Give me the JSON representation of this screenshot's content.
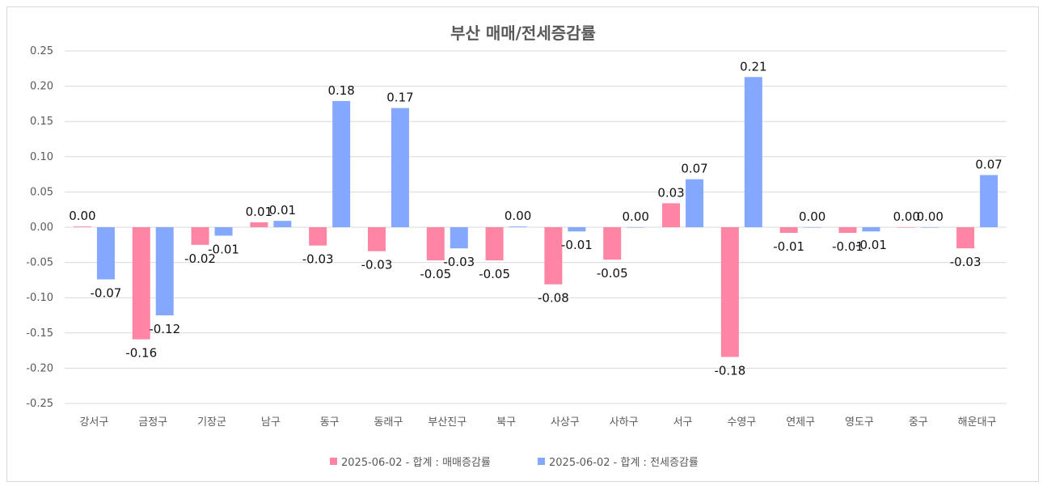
{
  "chart_data": {
    "type": "bar",
    "title": "부산 매매/전세증감률",
    "xlabel": "",
    "ylabel": "",
    "ylim": [
      -0.25,
      0.25
    ],
    "yticks": [
      "0.25",
      "0.20",
      "0.15",
      "0.10",
      "0.05",
      "0.00",
      "-0.05",
      "-0.10",
      "-0.15",
      "-0.20",
      "-0.25"
    ],
    "grid": true,
    "legend_position": "bottom",
    "categories": [
      "강서구",
      "금정구",
      "기장군",
      "남구",
      "동구",
      "동래구",
      "부산진구",
      "북구",
      "사상구",
      "사하구",
      "서구",
      "수영구",
      "연제구",
      "영도구",
      "중구",
      "해운대구"
    ],
    "series": [
      {
        "name": "2025-06-02 - 합계 : 매매증감률",
        "color": "#FF85A5",
        "values": [
          0.001,
          -0.159,
          -0.025,
          0.007,
          -0.026,
          -0.034,
          -0.047,
          -0.047,
          -0.081,
          -0.046,
          0.034,
          -0.184,
          -0.008,
          -0.008,
          0.0,
          -0.03
        ],
        "labels": [
          "0.00",
          "-0.16",
          "-0.02",
          "0.01",
          "-0.03",
          "-0.03",
          "-0.05",
          "-0.05",
          "-0.08",
          "-0.05",
          "0.03",
          "-0.18",
          "-0.01",
          "-0.01",
          "0.00",
          "-0.03"
        ]
      },
      {
        "name": "2025-06-02 - 합계 : 전세증감률",
        "color": "#85A8FF",
        "values": [
          -0.074,
          -0.125,
          -0.012,
          0.009,
          0.179,
          0.169,
          -0.03,
          0.001,
          -0.006,
          0.0,
          0.068,
          0.213,
          0.0,
          -0.006,
          0.0,
          0.074
        ],
        "labels": [
          "-0.07",
          "-0.12",
          "-0.01",
          "0.01",
          "0.18",
          "0.17",
          "-0.03",
          "0.00",
          "-0.01",
          "0.00",
          "0.07",
          "0.21",
          "0.00",
          "-0.01",
          "0.00",
          "0.07"
        ]
      }
    ]
  }
}
